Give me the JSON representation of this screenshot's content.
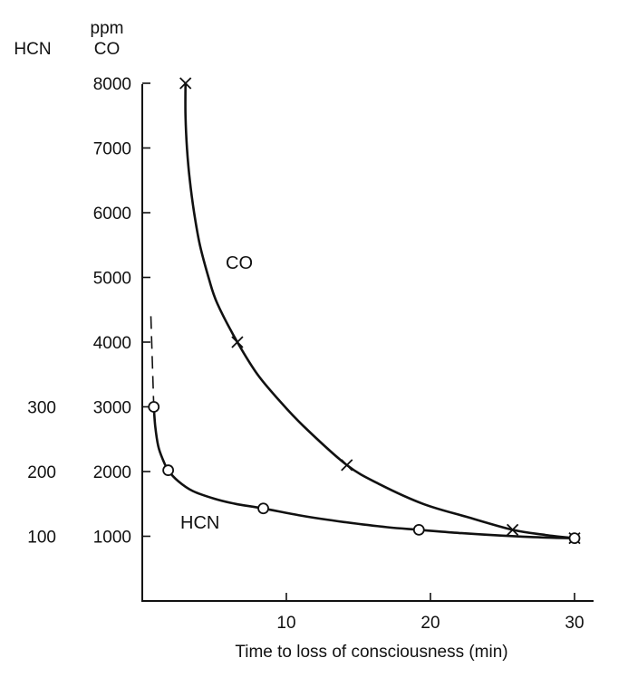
{
  "chart_data": {
    "type": "line",
    "xlabel": "Time to loss of consciousness (min)",
    "y_axis_co": {
      "unit_label": "ppm",
      "series_label": "CO",
      "ticks": [
        "1000",
        "2000",
        "3000",
        "4000",
        "5000",
        "6000",
        "7000",
        "8000"
      ]
    },
    "y_axis_hcn": {
      "series_label": "HCN",
      "ticks": [
        "100",
        "200",
        "300"
      ]
    },
    "x_ticks": [
      "10",
      "20",
      "30"
    ],
    "xlim": [
      0,
      31
    ],
    "ylim_co": [
      0,
      8200
    ],
    "ylim_hcn": [
      0,
      820
    ],
    "series": [
      {
        "name": "CO",
        "marker": "cross",
        "points": [
          {
            "x": 3,
            "y": 8000
          },
          {
            "x": 6.6,
            "y": 4000
          },
          {
            "x": 14.2,
            "y": 2100
          },
          {
            "x": 25.7,
            "y": 1100
          },
          {
            "x": 30,
            "y": 970
          }
        ],
        "curve": [
          [
            3.0,
            8000
          ],
          [
            3.0,
            7500
          ],
          [
            3.1,
            7000
          ],
          [
            3.3,
            6500
          ],
          [
            3.6,
            6000
          ],
          [
            4.0,
            5500
          ],
          [
            4.6,
            5000
          ],
          [
            5.2,
            4600
          ],
          [
            6.6,
            4000
          ],
          [
            8.0,
            3500
          ],
          [
            9.5,
            3100
          ],
          [
            11.2,
            2700
          ],
          [
            14.2,
            2100
          ],
          [
            16.5,
            1800
          ],
          [
            19.5,
            1500
          ],
          [
            22.5,
            1300
          ],
          [
            25.7,
            1100
          ],
          [
            28.0,
            1020
          ],
          [
            30.0,
            970
          ]
        ]
      },
      {
        "name": "HCN",
        "marker": "circle",
        "points": [
          {
            "x": 0.8,
            "y": 300
          },
          {
            "x": 1.8,
            "y": 202
          },
          {
            "x": 8.4,
            "y": 143
          },
          {
            "x": 19.2,
            "y": 110
          },
          {
            "x": 30,
            "y": 97
          }
        ],
        "curve": [
          [
            0.8,
            300
          ],
          [
            0.9,
            270
          ],
          [
            1.1,
            240
          ],
          [
            1.4,
            220
          ],
          [
            1.8,
            202
          ],
          [
            2.5,
            185
          ],
          [
            3.5,
            170
          ],
          [
            5.0,
            158
          ],
          [
            6.5,
            150
          ],
          [
            8.4,
            143
          ],
          [
            11.0,
            132
          ],
          [
            14.0,
            122
          ],
          [
            17.0,
            114
          ],
          [
            19.2,
            110
          ],
          [
            22.0,
            105
          ],
          [
            25.0,
            101
          ],
          [
            28.0,
            98
          ],
          [
            30.0,
            97
          ]
        ],
        "dashed_extension": [
          [
            0.6,
            440
          ],
          [
            0.8,
            300
          ]
        ]
      }
    ],
    "curve_labels": [
      "CO",
      "HCN"
    ]
  }
}
